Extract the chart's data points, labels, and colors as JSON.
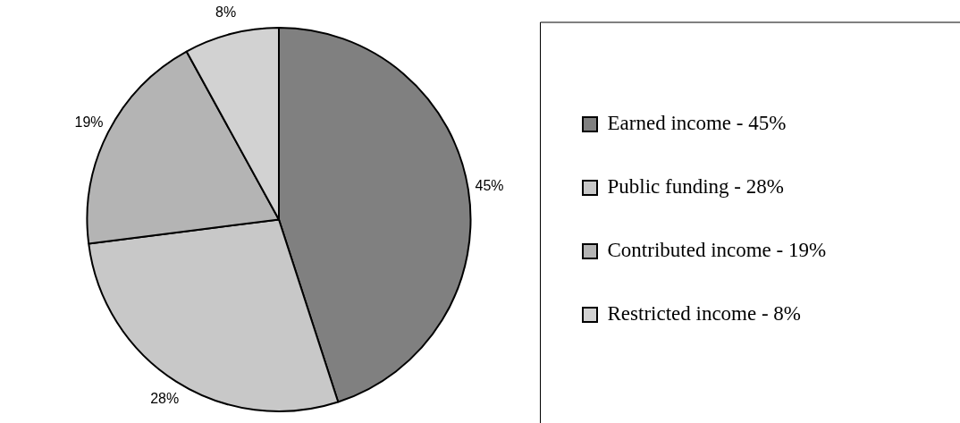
{
  "chart_data": {
    "type": "pie",
    "categories": [
      "Earned income - 45%",
      "Public funding - 28%",
      "Contributed income - 19%",
      "Restricted income - 8%"
    ],
    "values": [
      45,
      28,
      19,
      8
    ],
    "colors": [
      "#808080",
      "#c8c8c8",
      "#b4b4b4",
      "#d2d2d2"
    ],
    "value_labels": [
      "45%",
      "28%",
      "19%",
      "8%"
    ],
    "legend": "right"
  }
}
